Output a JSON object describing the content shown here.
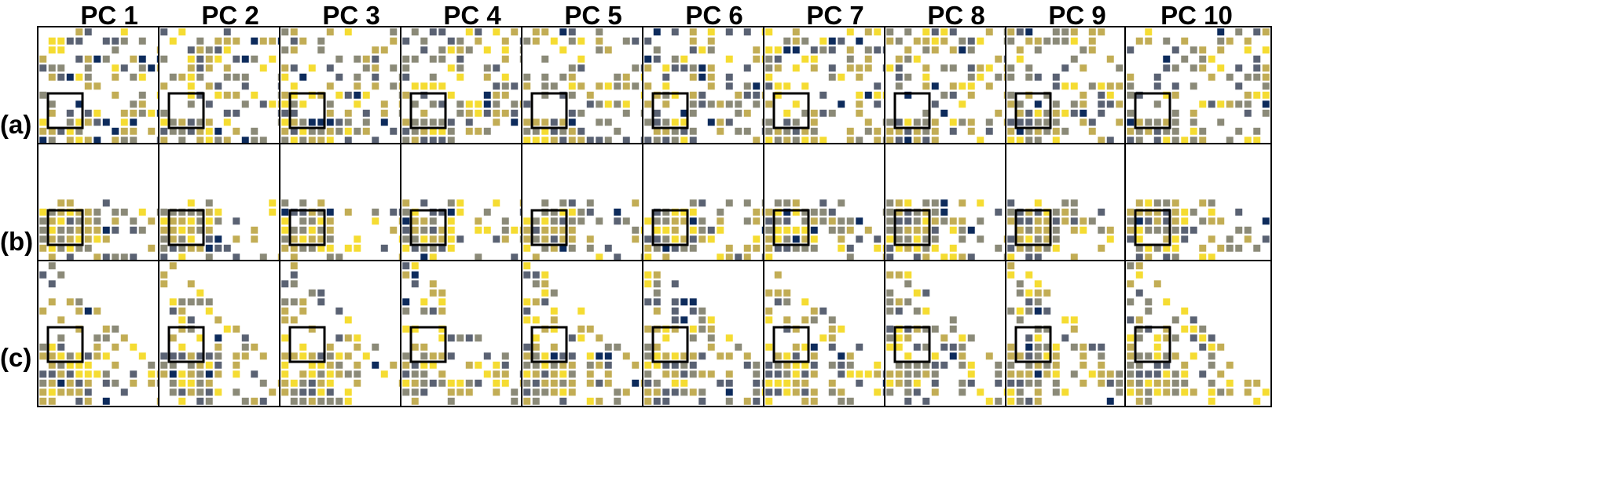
{
  "column_titles": [
    "PC 1",
    "PC 2",
    "PC 3",
    "PC 4",
    "PC 5",
    "PC 6",
    "PC 7",
    "PC 8",
    "PC 9",
    "PC 10"
  ],
  "row_labels": [
    "(a)",
    "(b)",
    "(c)"
  ],
  "colors": {
    "low": "#0d2b5c",
    "mid_low": "#5a6273",
    "mid": "#8b8a78",
    "mid_high": "#c2ad55",
    "high": "#f5dc32",
    "box_outline": "#000000",
    "background": "#ffffff"
  },
  "grid_cells": 16
}
